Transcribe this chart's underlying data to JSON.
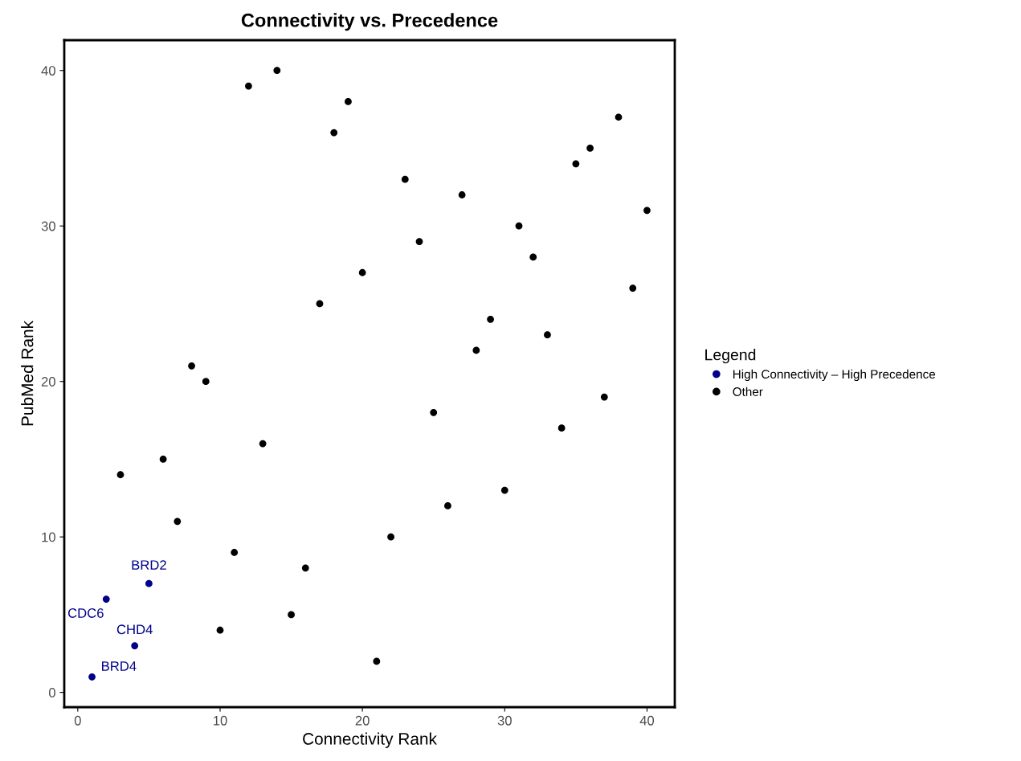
{
  "chart_data": {
    "type": "scatter",
    "title": "Connectivity vs. Precedence",
    "xlabel": "Connectivity Rank",
    "ylabel": "PubMed Rank",
    "legend_title": "Legend",
    "legend": "right",
    "grid": false,
    "marker": "circle",
    "xlim": [
      -0.95,
      41.95
    ],
    "ylim": [
      -0.95,
      41.95
    ],
    "xticks": [
      0,
      10,
      20,
      30,
      40
    ],
    "yticks": [
      0,
      10,
      20,
      30,
      40
    ],
    "series": [
      {
        "name": "High Connectivity – High Precedence",
        "color": "#00008b",
        "x": [
          1,
          2,
          4,
          5
        ],
        "values": [
          1,
          6,
          3,
          7
        ]
      },
      {
        "name": "Other",
        "color": "#000000",
        "x": [
          3,
          6,
          7,
          8,
          9,
          10,
          11,
          12,
          13,
          14,
          15,
          16,
          17,
          18,
          19,
          20,
          21,
          22,
          23,
          24,
          25,
          26,
          27,
          28,
          29,
          30,
          31,
          32,
          33,
          34,
          35,
          36,
          37,
          38,
          39,
          40
        ],
        "values": [
          14,
          15,
          11,
          21,
          20,
          4,
          9,
          39,
          16,
          40,
          5,
          8,
          25,
          36,
          38,
          27,
          2,
          10,
          33,
          29,
          18,
          12,
          32,
          22,
          24,
          13,
          30,
          28,
          23,
          17,
          34,
          35,
          19,
          37,
          26,
          31
        ]
      }
    ],
    "annotations": [
      {
        "text": "BRD2",
        "x": 5,
        "y": 7
      },
      {
        "text": "CDC6",
        "x": 2,
        "y": 6
      },
      {
        "text": "CHD4",
        "x": 4,
        "y": 3
      },
      {
        "text": "BRD4",
        "x": 1,
        "y": 1
      }
    ]
  }
}
